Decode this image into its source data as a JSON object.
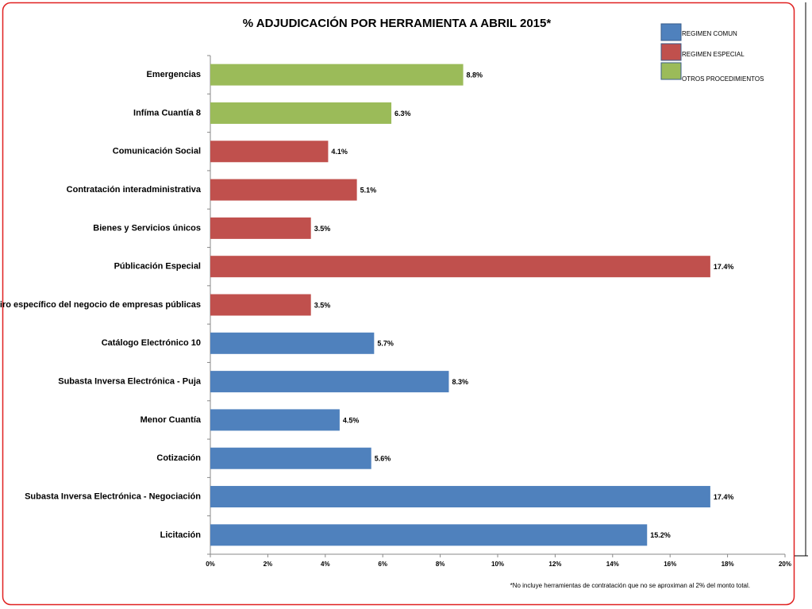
{
  "chart_data": {
    "type": "bar",
    "orientation": "horizontal",
    "title": "% ADJUDICACIÓN POR HERRAMIENTA A ABRIL 2015*",
    "footnote": "*No incluye herramientas de contratación que no se aproximan al 2% del monto total.",
    "categories": [
      "Emergencias",
      "Infíma Cuantía 8",
      "Comunicación Social",
      "Contratación interadministrativa",
      "Bienes y Servicios únicos",
      "Públicación Especial",
      "Giro específico del negocio de empresas públicas",
      "Catálogo Electrónico 10",
      "Subasta Inversa Electrónica - Puja",
      "Menor Cuantía",
      "Cotización",
      "Subasta Inversa Electrónica - Negociación",
      "Licitación"
    ],
    "series": [
      {
        "name": "REGIMEN COMUN",
        "color": "#4f81bd",
        "values": [
          null,
          null,
          null,
          null,
          null,
          null,
          null,
          5.7,
          8.3,
          4.5,
          5.6,
          17.4,
          15.2
        ],
        "value_labels": [
          null,
          null,
          null,
          null,
          null,
          null,
          null,
          "5.7%",
          "8.3%",
          "4.5%",
          "5.6%",
          "17.4%",
          "15.2%"
        ]
      },
      {
        "name": "REGIMEN ESPECIAL",
        "color": "#c0504d",
        "values": [
          null,
          null,
          4.1,
          5.1,
          3.5,
          17.4,
          3.5,
          null,
          null,
          null,
          null,
          null,
          null
        ],
        "value_labels": [
          null,
          null,
          "4.1%",
          "5.1%",
          "3.5%",
          "17.4%",
          "3.5%",
          null,
          null,
          null,
          null,
          null,
          null
        ]
      },
      {
        "name": "OTROS PROCEDIMIENTOS",
        "color": "#9bbb59",
        "values": [
          8.8,
          6.3,
          null,
          null,
          null,
          null,
          null,
          null,
          null,
          null,
          null,
          null,
          null
        ],
        "value_labels": [
          "8.8%",
          "6.3%",
          null,
          null,
          null,
          null,
          null,
          null,
          null,
          null,
          null,
          null,
          null
        ]
      }
    ],
    "xlim": [
      0,
      20
    ],
    "xticks": [
      {
        "value": 0,
        "label": "0%"
      },
      {
        "value": 2,
        "label": "2%"
      },
      {
        "value": 4,
        "label": "4%"
      },
      {
        "value": 6,
        "label": "6%"
      },
      {
        "value": 8,
        "label": "8%"
      },
      {
        "value": 10,
        "label": "10%"
      },
      {
        "value": 12,
        "label": "12%"
      },
      {
        "value": 14,
        "label": "14%"
      },
      {
        "value": 16,
        "label": "16%"
      },
      {
        "value": 18,
        "label": "18%"
      },
      {
        "value": 20,
        "label": "20%"
      }
    ],
    "legend": "top-right",
    "grid": false
  }
}
